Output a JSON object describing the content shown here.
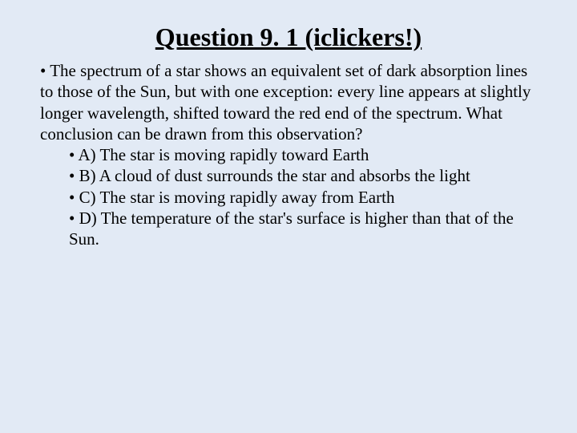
{
  "slide": {
    "title": "Question 9. 1 (iclickers!)",
    "question": "• The spectrum of a star shows an equivalent set of dark absorption lines to those of the Sun, but with one exception: every line appears at slightly longer wavelength, shifted toward the red end of the spectrum. What conclusion can be drawn from this observation?",
    "optionA": "• A) The star is moving rapidly toward Earth",
    "optionB": "• B) A cloud of dust surrounds the star and absorbs the light",
    "optionC": "• C) The star is moving rapidly away from Earth",
    "optionD": "• D) The temperature of the star's surface is higher than that of the Sun."
  },
  "styles": {
    "background_color": "#e2eaf5",
    "text_color": "#000000",
    "title_fontsize": 32,
    "body_fontsize": 21,
    "font_family": "Times New Roman"
  }
}
